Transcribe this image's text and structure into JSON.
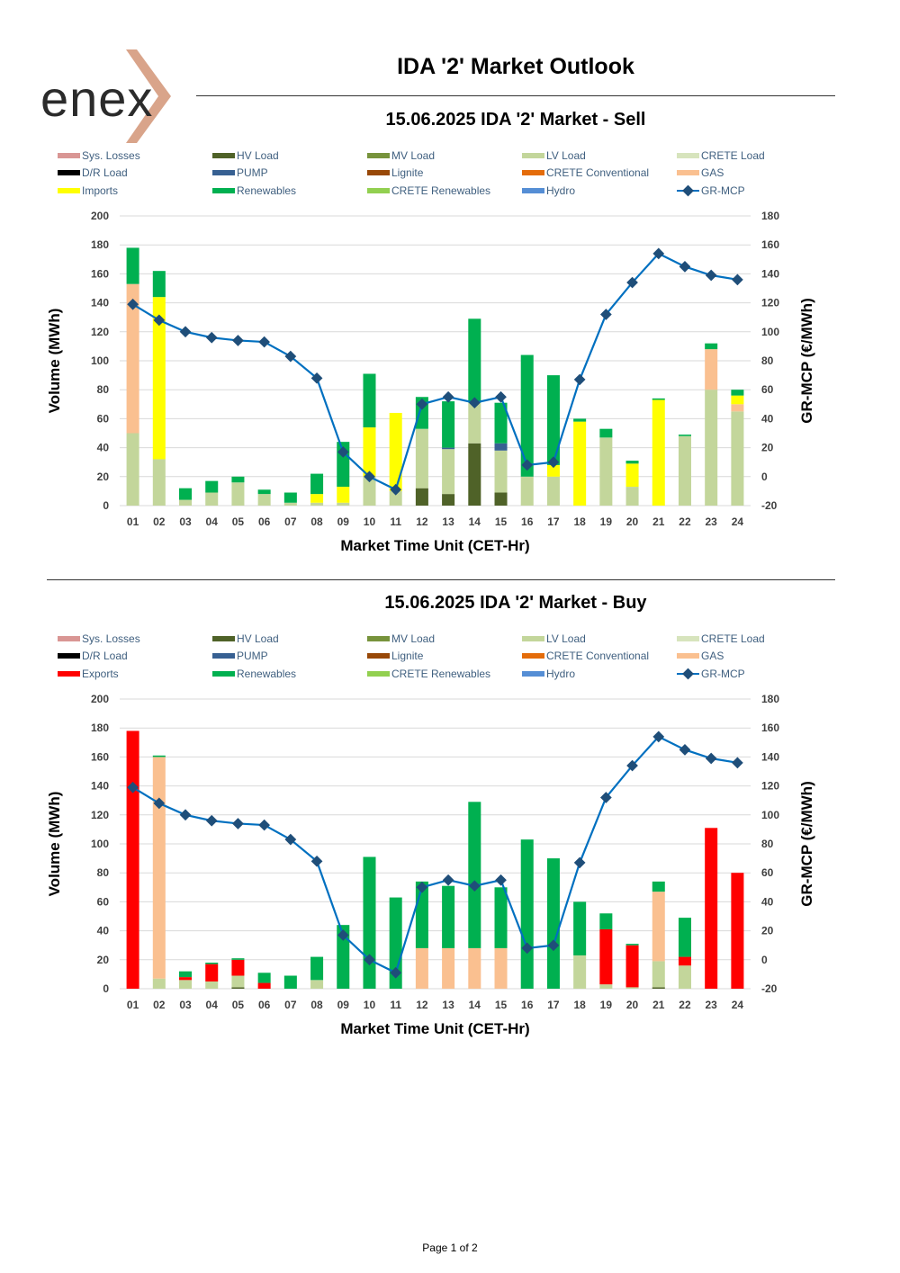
{
  "brand": {
    "name": "enex",
    "accent": "#d9a48a"
  },
  "title": "IDA '2' Market Outlook",
  "footer": "Page 1 of 2",
  "legend_colors": {
    "Sys. Losses": "#d99694",
    "HV Load": "#4f6228",
    "MV Load": "#77933c",
    "LV Load": "#c3d69b",
    "CRETE Load": "#d7e4bd",
    "D/R Load": "#000000",
    "PUMP": "#376092",
    "Lignite": "#984807",
    "CRETE Conventional": "#e46c0a",
    "GAS": "#fac090",
    "Imports": "#ffff00",
    "Exports": "#ff0000",
    "Renewables": "#00b050",
    "CRETE Renewables": "#92d050",
    "Hydro": "#558ed5",
    "GR-MCP": "#0070c0",
    "GR-MCP-marker": "#1f4e79"
  },
  "chart_data": [
    {
      "type": "bar",
      "title": "15.06.2025  IDA '2' Market - Sell",
      "xlabel": "Market Time Unit (CET-Hr)",
      "ylabel": "Volume (MWh)",
      "y2label": "GR-MCP (€/MWh)",
      "ylim": [
        0,
        200
      ],
      "y2lim": [
        -20,
        180
      ],
      "yticks": [
        "0",
        "20",
        "40",
        "60",
        "80",
        "100",
        "120",
        "140",
        "160",
        "180",
        "200"
      ],
      "y2ticks": [
        "-20",
        "0",
        "20",
        "40",
        "60",
        "80",
        "100",
        "120",
        "140",
        "160",
        "180"
      ],
      "legend": [
        "Sys. Losses",
        "HV Load",
        "MV Load",
        "LV Load",
        "CRETE Load",
        "D/R Load",
        "PUMP",
        "Lignite",
        "CRETE Conventional",
        "GAS",
        "Imports",
        "Renewables",
        "CRETE Renewables",
        "Hydro",
        "GR-MCP"
      ],
      "categories": [
        "01",
        "02",
        "03",
        "04",
        "05",
        "06",
        "07",
        "08",
        "09",
        "10",
        "11",
        "12",
        "13",
        "14",
        "15",
        "16",
        "17",
        "18",
        "19",
        "20",
        "21",
        "22",
        "23",
        "24"
      ],
      "series": [
        {
          "name": "HV Load",
          "values": [
            0,
            0,
            0,
            0,
            0,
            0,
            0,
            0,
            0,
            0,
            0,
            12,
            8,
            43,
            9,
            0,
            0,
            0,
            0,
            0,
            0,
            0,
            0,
            0
          ]
        },
        {
          "name": "LV Load",
          "values": [
            50,
            32,
            4,
            9,
            16,
            8,
            2,
            2,
            2,
            20,
            10,
            41,
            31,
            28,
            29,
            20,
            20,
            0,
            47,
            13,
            0,
            48,
            80,
            65
          ]
        },
        {
          "name": "PUMP",
          "values": [
            0,
            0,
            0,
            0,
            0,
            0,
            0,
            0,
            0,
            0,
            0,
            0,
            1,
            0,
            5,
            0,
            0,
            0,
            0,
            0,
            0,
            0,
            0,
            0
          ]
        },
        {
          "name": "GAS",
          "values": [
            103,
            0,
            0,
            0,
            0,
            0,
            0,
            0,
            0,
            0,
            0,
            0,
            0,
            0,
            0,
            0,
            0,
            0,
            0,
            0,
            0,
            0,
            28,
            5
          ]
        },
        {
          "name": "Imports",
          "values": [
            0,
            112,
            0,
            0,
            0,
            0,
            0,
            6,
            11,
            34,
            54,
            0,
            0,
            0,
            0,
            0,
            8,
            58,
            0,
            16,
            73,
            0,
            0,
            6
          ]
        },
        {
          "name": "Renewables",
          "values": [
            25,
            18,
            8,
            8,
            4,
            3,
            7,
            14,
            31,
            37,
            0,
            22,
            32,
            58,
            28,
            84,
            62,
            2,
            6,
            2,
            1,
            1,
            4,
            4
          ]
        }
      ],
      "mcp": [
        119,
        108,
        100,
        96,
        94,
        93,
        83,
        68,
        17,
        0,
        -9,
        50,
        55,
        51,
        55,
        8,
        10,
        67,
        112,
        134,
        154,
        145,
        139,
        136
      ]
    },
    {
      "type": "bar",
      "title": "15.06.2025  IDA '2' Market - Buy",
      "xlabel": "Market Time Unit (CET-Hr)",
      "ylabel": "Volume (MWh)",
      "y2label": "GR-MCP (€/MWh)",
      "ylim": [
        0,
        200
      ],
      "y2lim": [
        -20,
        180
      ],
      "yticks": [
        "0",
        "20",
        "40",
        "60",
        "80",
        "100",
        "120",
        "140",
        "160",
        "180",
        "200"
      ],
      "y2ticks": [
        "-20",
        "0",
        "20",
        "40",
        "60",
        "80",
        "100",
        "120",
        "140",
        "160",
        "180"
      ],
      "legend": [
        "Sys. Losses",
        "HV Load",
        "MV Load",
        "LV Load",
        "CRETE Load",
        "D/R Load",
        "PUMP",
        "Lignite",
        "CRETE Conventional",
        "GAS",
        "Exports",
        "Renewables",
        "CRETE Renewables",
        "Hydro",
        "GR-MCP"
      ],
      "categories": [
        "01",
        "02",
        "03",
        "04",
        "05",
        "06",
        "07",
        "08",
        "09",
        "10",
        "11",
        "12",
        "13",
        "14",
        "15",
        "16",
        "17",
        "18",
        "19",
        "20",
        "21",
        "22",
        "23",
        "24"
      ],
      "series": [
        {
          "name": "HV Load",
          "values": [
            0,
            0,
            0,
            0,
            1,
            0,
            0,
            0,
            0,
            0,
            0,
            0,
            0,
            0,
            0,
            0,
            0,
            0,
            0,
            0,
            1,
            0,
            0,
            0
          ]
        },
        {
          "name": "LV Load",
          "values": [
            0,
            7,
            6,
            5,
            8,
            0,
            0,
            6,
            0,
            0,
            0,
            0,
            0,
            0,
            0,
            0,
            0,
            23,
            3,
            1,
            18,
            16,
            0,
            0
          ]
        },
        {
          "name": "GAS",
          "values": [
            0,
            153,
            0,
            0,
            0,
            0,
            0,
            0,
            0,
            0,
            0,
            28,
            28,
            28,
            28,
            0,
            0,
            0,
            0,
            0,
            48,
            0,
            0,
            0
          ]
        },
        {
          "name": "Exports",
          "values": [
            178,
            0,
            2,
            12,
            11,
            4,
            0,
            0,
            0,
            0,
            0,
            0,
            0,
            0,
            0,
            0,
            0,
            0,
            38,
            29,
            0,
            6,
            111,
            80
          ]
        },
        {
          "name": "Renewables",
          "values": [
            0,
            1,
            4,
            1,
            1,
            7,
            9,
            16,
            44,
            91,
            63,
            46,
            43,
            101,
            42,
            103,
            90,
            37,
            11,
            1,
            7,
            27,
            0,
            0
          ]
        }
      ],
      "mcp": [
        119,
        108,
        100,
        96,
        94,
        93,
        83,
        68,
        17,
        0,
        -9,
        50,
        55,
        51,
        55,
        8,
        10,
        67,
        112,
        134,
        154,
        145,
        139,
        136
      ]
    }
  ]
}
